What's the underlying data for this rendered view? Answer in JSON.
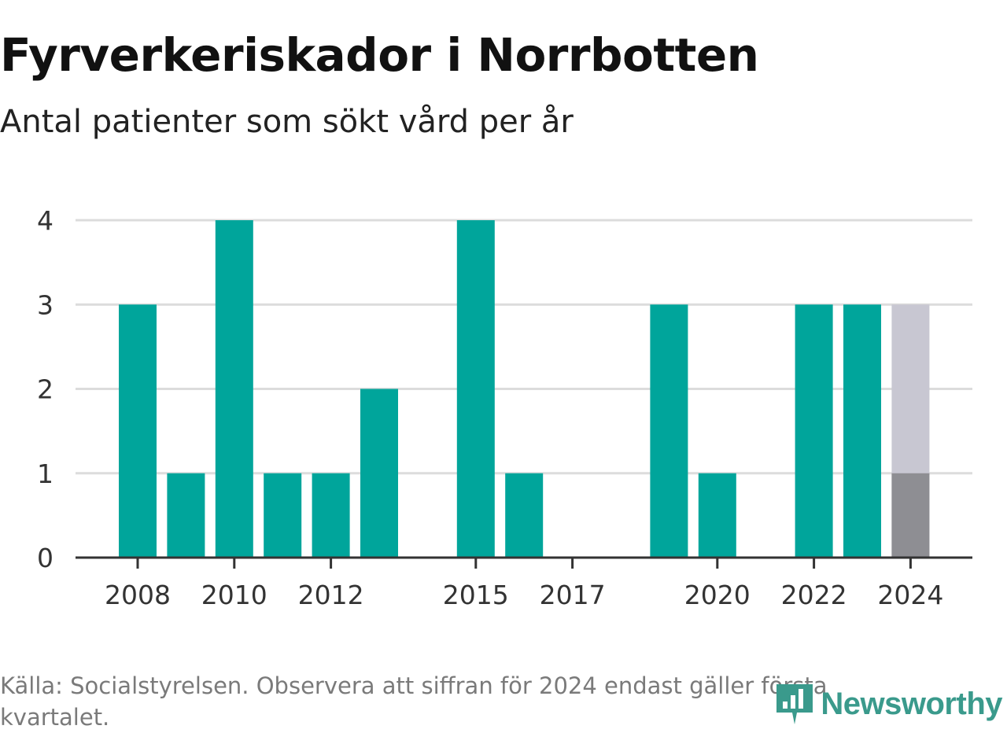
{
  "header": {
    "title": "Fyrverkeriskador i Norrbotten",
    "subtitle": "Antal patienter som sökt vård per år"
  },
  "chart_data": {
    "type": "bar",
    "categories": [
      2008,
      2009,
      2010,
      2011,
      2012,
      2013,
      2014,
      2015,
      2016,
      2017,
      2018,
      2019,
      2020,
      2021,
      2022,
      2023,
      2024
    ],
    "values": [
      3,
      1,
      4,
      1,
      1,
      2,
      0,
      4,
      1,
      0,
      0,
      3,
      1,
      0,
      3,
      3,
      1
    ],
    "highlight": {
      "category": 2024,
      "value": 1,
      "background_value": 3
    },
    "xticks": [
      "2008",
      "2010",
      "2012",
      "2015",
      "2017",
      "2020",
      "2022",
      "2024"
    ],
    "yticks": [
      "0",
      "1",
      "2",
      "3",
      "4"
    ],
    "ylim": [
      0,
      4
    ],
    "grid": true,
    "colors": {
      "bar": "#00a59b",
      "highlight": "#8e8e93",
      "highlight_background": "#c8c7d2",
      "grid": "#dcdcdc",
      "axis": "#333333"
    }
  },
  "footer": {
    "source": "Källa: Socialstyrelsen. Observera att siffran för 2024 endast gäller första kvartalet.",
    "brand": "Newsworthy",
    "brand_icon": "newsworthy-logo-icon",
    "brand_color": "#3a9a8c"
  }
}
